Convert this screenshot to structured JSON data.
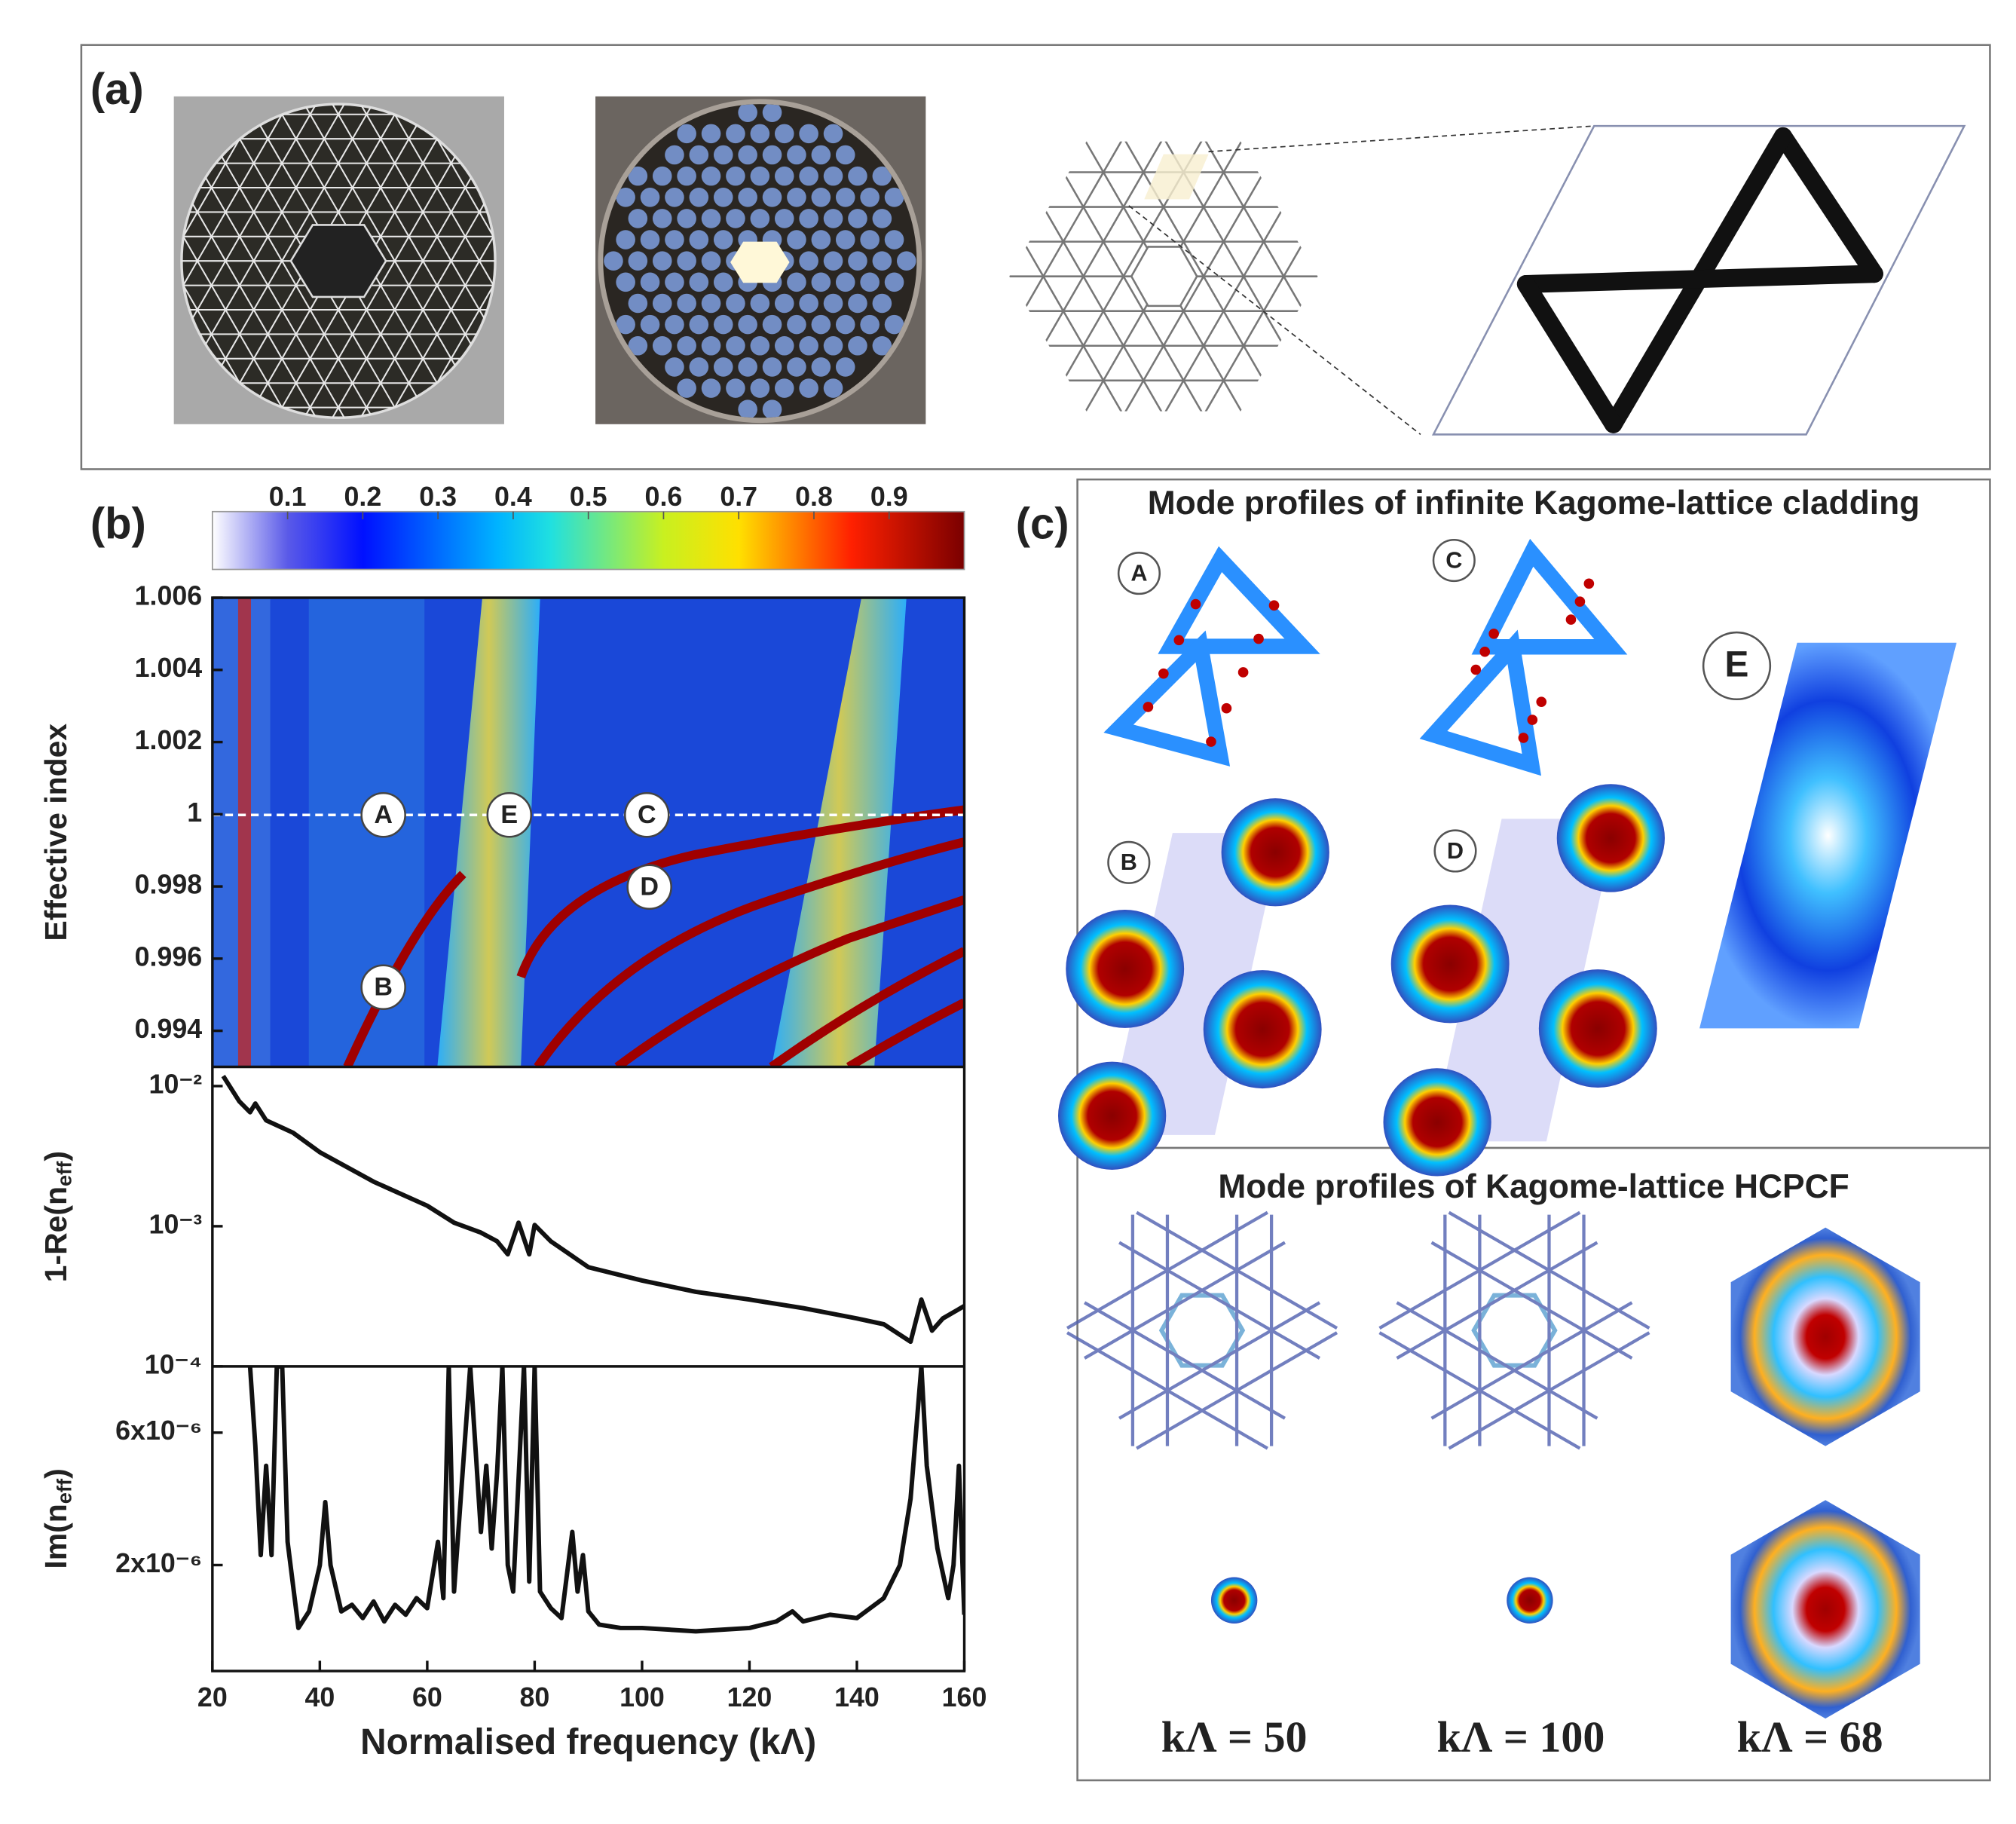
{
  "panel_a": {
    "label": "(a)"
  },
  "panel_b": {
    "label": "(b)"
  },
  "chart_data": [
    {
      "type": "heatmap",
      "colorbar_lim": [
        0,
        1
      ],
      "colorbar_ticks": [
        0.1,
        0.2,
        0.3,
        0.4,
        0.5,
        0.6,
        0.7,
        0.8,
        0.9
      ],
      "ylabel": "Effective index",
      "xlim": [
        20,
        160
      ],
      "ylim": [
        0.993,
        1.006
      ],
      "yticks": [
        1.006,
        1.004,
        1.002,
        1,
        0.998,
        0.996,
        0.994
      ],
      "annotations": [
        "A",
        "E",
        "C",
        "D",
        "B"
      ]
    },
    {
      "type": "line",
      "log_y": true,
      "ylabel": [
        "1-Re(n",
        "eff",
        ")"
      ],
      "xlim": [
        20,
        160
      ],
      "ylim": [
        0.0001,
        0.0137
      ],
      "yticks": [
        {
          "value": 0.01,
          "label": "10⁻²"
        },
        {
          "value": 0.001,
          "label": "10⁻³"
        },
        {
          "value": 0.0001,
          "label": "10⁻⁴"
        }
      ],
      "x": [
        22,
        25,
        27,
        28,
        30,
        35,
        40,
        50,
        60,
        65,
        70,
        73,
        75,
        77,
        79,
        80,
        83,
        90,
        100,
        110,
        120,
        130,
        140,
        145,
        150,
        152,
        154,
        156,
        160
      ],
      "series": [
        {
          "color": "#111111",
          "values": [
            0.0118,
            0.00778,
            0.0065,
            0.0075,
            0.00569,
            0.00465,
            0.00337,
            0.00208,
            0.0014,
            0.00106,
            0.0009,
            0.00078,
            0.00063,
            0.00106,
            0.00063,
            0.00102,
            0.00078,
            0.00051,
            0.00041,
            0.00034,
            0.0003,
            0.00026,
            0.00022,
            0.0002,
            0.00015,
            0.0003,
            0.00018,
            0.00022,
            0.00027
          ]
        }
      ]
    },
    {
      "type": "line",
      "ylabel": [
        "Im(n",
        "eff",
        ")"
      ],
      "xlabel": "Normalised frequency (kΛ)",
      "xlim": [
        20,
        160
      ],
      "xticks": [
        20,
        40,
        60,
        80,
        100,
        120,
        140,
        160
      ],
      "ylim": [
        -1.2e-06,
        8e-06
      ],
      "yticks": [
        {
          "value": 6e-06,
          "label": "6x10⁻⁶"
        },
        {
          "value": 2e-06,
          "label": "2x10⁻⁶"
        }
      ],
      "x": [
        27,
        28,
        29,
        30,
        31,
        32,
        33,
        34,
        36,
        38,
        40,
        41,
        42,
        44,
        46,
        48,
        50,
        52,
        54,
        56,
        58,
        60,
        62,
        63,
        64,
        65,
        68,
        70,
        71,
        72,
        73,
        74,
        75,
        76,
        78,
        79,
        80,
        81,
        83,
        85,
        87,
        88,
        89,
        90,
        92,
        96,
        100,
        110,
        120,
        125,
        128,
        130,
        135,
        140,
        145,
        148,
        150,
        152,
        153,
        155,
        157,
        158,
        159,
        160
      ],
      "series": [
        {
          "color": "#111111",
          "values": [
            8e-06,
            5.6e-06,
            2.3e-06,
            5e-06,
            2.3e-06,
            8e-06,
            8e-06,
            2.7e-06,
            1e-07,
            6e-07,
            2e-06,
            3.9e-06,
            2e-06,
            6e-07,
            8e-07,
            4e-07,
            9e-07,
            3e-07,
            8e-07,
            5e-07,
            1e-06,
            7e-07,
            2.7e-06,
            1e-06,
            8e-06,
            1.2e-06,
            8e-06,
            3e-06,
            5e-06,
            2.5e-06,
            4.8e-06,
            8e-06,
            2e-06,
            1.2e-06,
            8e-06,
            1.5e-06,
            8e-06,
            1.2e-06,
            7e-07,
            4e-07,
            3e-06,
            1.2e-06,
            2.3e-06,
            6e-07,
            2e-07,
            1e-07,
            1e-07,
            0,
            1e-07,
            3e-07,
            6e-07,
            3e-07,
            5e-07,
            4e-07,
            1e-06,
            2e-06,
            4e-06,
            8e-06,
            5e-06,
            2.5e-06,
            1e-06,
            2e-06,
            5e-06,
            5e-07
          ]
        }
      ]
    }
  ],
  "panel_c": {
    "label": "(c)",
    "cladding_title": "Mode profiles of infinite Kagome-lattice cladding",
    "mode_labels": [
      "A",
      "C",
      "E",
      "B",
      "D"
    ],
    "hcpcf_title": "Mode profiles of Kagome-lattice HCPCF",
    "frequency_labels": [
      "kΛ = 50",
      "kΛ = 100",
      "kΛ = 68"
    ]
  }
}
